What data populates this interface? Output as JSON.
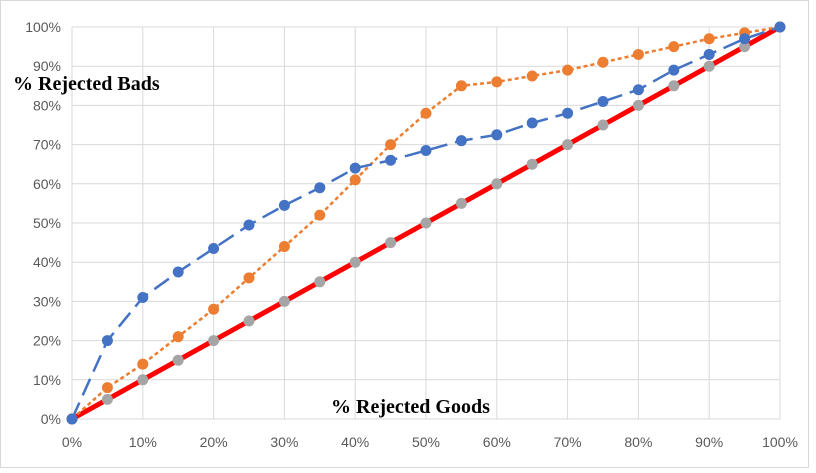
{
  "chart_data": {
    "type": "line",
    "title": "",
    "xlabel": "% Rejected Goods",
    "ylabel": "% Rejected Bads",
    "xlim": [
      0,
      100
    ],
    "ylim": [
      0,
      100
    ],
    "x_ticks": [
      "0%",
      "10%",
      "20%",
      "30%",
      "40%",
      "50%",
      "60%",
      "70%",
      "80%",
      "90%",
      "100%"
    ],
    "y_ticks": [
      "0%",
      "10%",
      "20%",
      "30%",
      "40%",
      "50%",
      "60%",
      "70%",
      "80%",
      "90%",
      "100%"
    ],
    "grid": true,
    "legend": "none",
    "x": [
      0,
      5,
      10,
      15,
      20,
      25,
      30,
      35,
      40,
      45,
      50,
      55,
      60,
      65,
      70,
      75,
      80,
      85,
      90,
      95,
      100
    ],
    "series": [
      {
        "color": "#4472c4",
        "style": "long-dash",
        "values": [
          0,
          20,
          31,
          37.5,
          43.5,
          49.5,
          54.5,
          59,
          64,
          66,
          68.5,
          71,
          72.5,
          75.5,
          78,
          81,
          84,
          89,
          93,
          97,
          100
        ]
      },
      {
        "color": "#ed7d31",
        "style": "dotted",
        "values": [
          0,
          8,
          14,
          21,
          28,
          36,
          44,
          52,
          61,
          70,
          78,
          85,
          86,
          87.5,
          89,
          91,
          93,
          95,
          97,
          98.5,
          100
        ]
      },
      {
        "color": "#a5a5a5",
        "style": "solid-red",
        "line_color": "#ff0000",
        "values": [
          0,
          5,
          10,
          15,
          20,
          25,
          30,
          35,
          40,
          45,
          50,
          55,
          60,
          65,
          70,
          75,
          80,
          85,
          90,
          95,
          100
        ]
      }
    ]
  }
}
